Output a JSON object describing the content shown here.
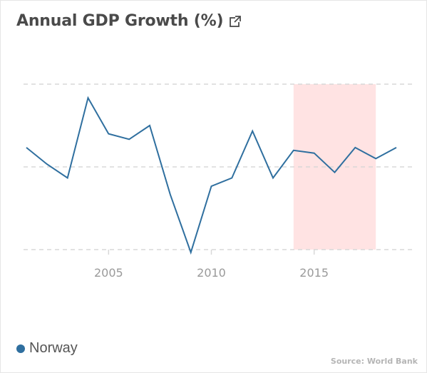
{
  "header": {
    "title": "Annual GDP Growth (%)",
    "external_icon": "external-link-icon"
  },
  "legend": {
    "items": [
      {
        "label": "Norway",
        "color": "#2f6f9f"
      }
    ]
  },
  "source": "Source: World Bank",
  "colors": {
    "line": "#2f6f9f",
    "highlight": "#ffe3e3",
    "grid": "#d8d8d8",
    "tick": "#9a9a9a"
  },
  "chart_data": {
    "type": "line",
    "title": "Annual GDP Growth (%)",
    "xlabel": "",
    "ylabel": "",
    "x": [
      2001,
      2002,
      2003,
      2004,
      2005,
      2006,
      2007,
      2008,
      2009,
      2010,
      2011,
      2012,
      2013,
      2014,
      2015,
      2016,
      2017,
      2018,
      2019
    ],
    "series": [
      {
        "name": "Norway",
        "values": [
          2.1,
          1.5,
          1.0,
          3.9,
          2.6,
          2.4,
          2.9,
          0.4,
          -1.7,
          0.7,
          1.0,
          2.7,
          1.0,
          2.0,
          1.9,
          1.2,
          2.1,
          1.7,
          2.1
        ]
      }
    ],
    "xticks": [
      "2005",
      "2010",
      "2015"
    ],
    "xtick_values": [
      2005,
      2010,
      2015
    ],
    "xlim": [
      2001,
      2019
    ],
    "ylim": [
      -1.6,
      4.4
    ],
    "ygrid": [
      -1.6,
      1.4,
      4.4
    ],
    "highlight_range": [
      2014,
      2018
    ],
    "grid": true,
    "legend_position": "bottom-left"
  }
}
